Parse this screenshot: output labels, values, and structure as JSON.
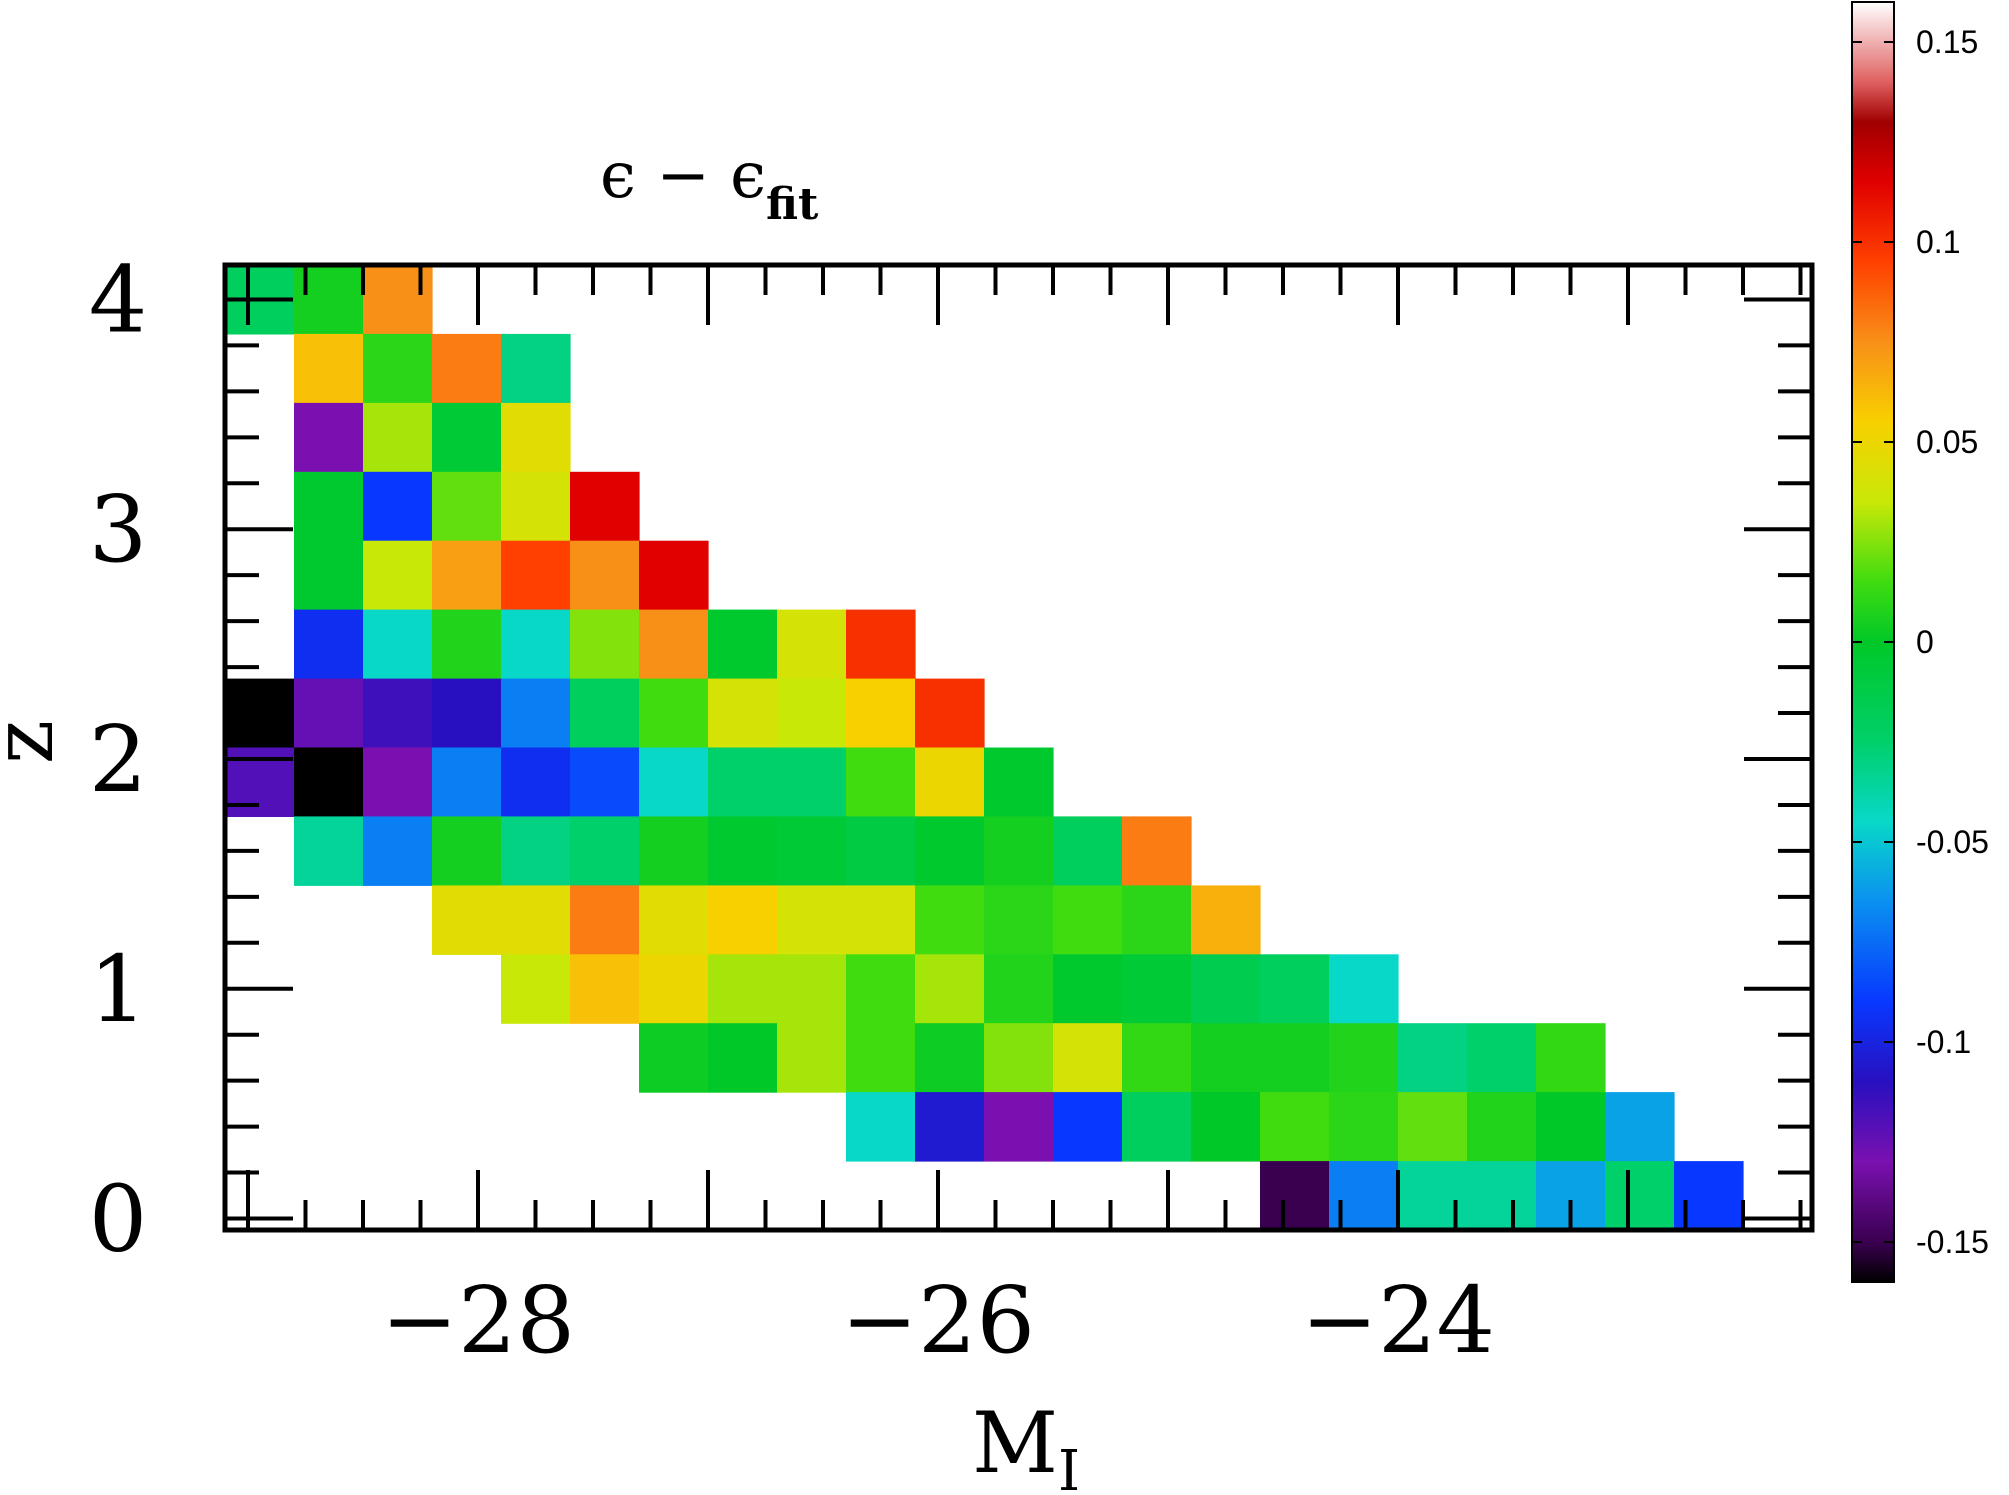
{
  "chart_data": {
    "type": "heatmap",
    "title": "ϵ − ϵ",
    "title_subscript": "fit",
    "xlabel": "M",
    "xlabel_subscript": "I",
    "ylabel": "z",
    "xlim": [
      -29.1,
      -22.2
    ],
    "ylim": [
      -0.05,
      4.15
    ],
    "x_ticks": [
      -28,
      -26,
      -24
    ],
    "x_tick_labels": [
      "−28",
      "−26",
      "−24"
    ],
    "y_ticks": [
      0,
      1,
      2,
      3,
      4
    ],
    "y_tick_labels": [
      "0",
      "1",
      "2",
      "3",
      "4"
    ],
    "bin_width_x": 0.3,
    "bin_width_y": 0.3,
    "colorbar": {
      "range": [
        -0.16,
        0.16
      ],
      "ticks": [
        0.15,
        0.1,
        0.05,
        0,
        -0.05,
        -0.1,
        -0.15
      ],
      "tick_labels": [
        "0.15",
        "0.1",
        "0.05",
        "0",
        "-0.05",
        "-0.1",
        "-0.15"
      ],
      "colormap": [
        [
          -0.16,
          "#000000"
        ],
        [
          -0.15,
          "#3a0050"
        ],
        [
          -0.13,
          "#7a10b0"
        ],
        [
          -0.11,
          "#2810c0"
        ],
        [
          -0.09,
          "#0838ff"
        ],
        [
          -0.065,
          "#0a90f0"
        ],
        [
          -0.045,
          "#08d8c8"
        ],
        [
          -0.025,
          "#00d06a"
        ],
        [
          0.0,
          "#00c828"
        ],
        [
          0.015,
          "#40dc10"
        ],
        [
          0.035,
          "#c8e808"
        ],
        [
          0.055,
          "#f8d000"
        ],
        [
          0.075,
          "#f89018"
        ],
        [
          0.095,
          "#ff4000"
        ],
        [
          0.115,
          "#e00000"
        ],
        [
          0.13,
          "#a00000"
        ],
        [
          0.14,
          "#e06060"
        ],
        [
          0.16,
          "#ffffff"
        ]
      ]
    },
    "cells": [
      {
        "x": -28.95,
        "y": 4.0,
        "value": -0.02
      },
      {
        "x": -28.65,
        "y": 4.0,
        "value": 0.005
      },
      {
        "x": -28.35,
        "y": 4.0,
        "value": 0.075
      },
      {
        "x": -28.65,
        "y": 3.7,
        "value": 0.06
      },
      {
        "x": -28.35,
        "y": 3.7,
        "value": 0.01
      },
      {
        "x": -28.05,
        "y": 3.7,
        "value": 0.08
      },
      {
        "x": -27.75,
        "y": 3.7,
        "value": -0.03
      },
      {
        "x": -28.65,
        "y": 3.4,
        "value": -0.13
      },
      {
        "x": -28.35,
        "y": 3.4,
        "value": 0.03
      },
      {
        "x": -28.05,
        "y": 3.4,
        "value": -0.005
      },
      {
        "x": -27.75,
        "y": 3.4,
        "value": 0.045
      },
      {
        "x": -28.65,
        "y": 3.1,
        "value": -0.003
      },
      {
        "x": -28.35,
        "y": 3.1,
        "value": -0.09
      },
      {
        "x": -28.05,
        "y": 3.1,
        "value": 0.02
      },
      {
        "x": -27.75,
        "y": 3.1,
        "value": 0.04
      },
      {
        "x": -27.45,
        "y": 3.1,
        "value": 0.115
      },
      {
        "x": -28.65,
        "y": 2.8,
        "value": -0.003
      },
      {
        "x": -28.35,
        "y": 2.8,
        "value": 0.035
      },
      {
        "x": -28.05,
        "y": 2.8,
        "value": 0.07
      },
      {
        "x": -27.75,
        "y": 2.8,
        "value": 0.095
      },
      {
        "x": -27.45,
        "y": 2.8,
        "value": 0.075
      },
      {
        "x": -27.15,
        "y": 2.8,
        "value": 0.115
      },
      {
        "x": -28.65,
        "y": 2.5,
        "value": -0.095
      },
      {
        "x": -28.35,
        "y": 2.5,
        "value": -0.045
      },
      {
        "x": -28.05,
        "y": 2.5,
        "value": 0.008
      },
      {
        "x": -27.75,
        "y": 2.5,
        "value": -0.045
      },
      {
        "x": -27.45,
        "y": 2.5,
        "value": 0.025
      },
      {
        "x": -27.15,
        "y": 2.5,
        "value": 0.075
      },
      {
        "x": -26.85,
        "y": 2.5,
        "value": -0.002
      },
      {
        "x": -26.55,
        "y": 2.5,
        "value": 0.04
      },
      {
        "x": -26.25,
        "y": 2.5,
        "value": 0.1
      },
      {
        "x": -28.95,
        "y": 2.2,
        "value": -0.16
      },
      {
        "x": -28.65,
        "y": 2.2,
        "value": -0.125
      },
      {
        "x": -28.35,
        "y": 2.2,
        "value": -0.115
      },
      {
        "x": -28.05,
        "y": 2.2,
        "value": -0.11
      },
      {
        "x": -27.75,
        "y": 2.2,
        "value": -0.07
      },
      {
        "x": -27.45,
        "y": 2.2,
        "value": -0.02
      },
      {
        "x": -27.15,
        "y": 2.2,
        "value": 0.015
      },
      {
        "x": -26.85,
        "y": 2.2,
        "value": 0.04
      },
      {
        "x": -26.55,
        "y": 2.2,
        "value": 0.035
      },
      {
        "x": -26.25,
        "y": 2.2,
        "value": 0.055
      },
      {
        "x": -25.95,
        "y": 2.2,
        "value": 0.1
      },
      {
        "x": -28.95,
        "y": 1.9,
        "value": -0.12
      },
      {
        "x": -28.65,
        "y": 1.9,
        "value": -0.16
      },
      {
        "x": -28.35,
        "y": 1.9,
        "value": -0.13
      },
      {
        "x": -28.05,
        "y": 1.9,
        "value": -0.07
      },
      {
        "x": -27.75,
        "y": 1.9,
        "value": -0.095
      },
      {
        "x": -27.45,
        "y": 1.9,
        "value": -0.085
      },
      {
        "x": -27.15,
        "y": 1.9,
        "value": -0.045
      },
      {
        "x": -26.85,
        "y": 1.9,
        "value": -0.025
      },
      {
        "x": -26.55,
        "y": 1.9,
        "value": -0.025
      },
      {
        "x": -26.25,
        "y": 1.9,
        "value": 0.015
      },
      {
        "x": -25.95,
        "y": 1.9,
        "value": 0.05
      },
      {
        "x": -25.65,
        "y": 1.9,
        "value": -0.002
      },
      {
        "x": -28.65,
        "y": 1.6,
        "value": -0.035
      },
      {
        "x": -28.35,
        "y": 1.6,
        "value": -0.07
      },
      {
        "x": -28.05,
        "y": 1.6,
        "value": 0.005
      },
      {
        "x": -27.75,
        "y": 1.6,
        "value": -0.03
      },
      {
        "x": -27.45,
        "y": 1.6,
        "value": -0.025
      },
      {
        "x": -27.15,
        "y": 1.6,
        "value": 0.005
      },
      {
        "x": -26.85,
        "y": 1.6,
        "value": -0.003
      },
      {
        "x": -26.55,
        "y": 1.6,
        "value": -0.005
      },
      {
        "x": -26.25,
        "y": 1.6,
        "value": -0.01
      },
      {
        "x": -25.95,
        "y": 1.6,
        "value": -0.002
      },
      {
        "x": -25.65,
        "y": 1.6,
        "value": 0.005
      },
      {
        "x": -25.35,
        "y": 1.6,
        "value": -0.02
      },
      {
        "x": -25.05,
        "y": 1.6,
        "value": 0.08
      },
      {
        "x": -28.05,
        "y": 1.3,
        "value": 0.045
      },
      {
        "x": -27.75,
        "y": 1.3,
        "value": 0.045
      },
      {
        "x": -27.45,
        "y": 1.3,
        "value": 0.08
      },
      {
        "x": -27.15,
        "y": 1.3,
        "value": 0.045
      },
      {
        "x": -26.85,
        "y": 1.3,
        "value": 0.055
      },
      {
        "x": -26.55,
        "y": 1.3,
        "value": 0.04
      },
      {
        "x": -26.25,
        "y": 1.3,
        "value": 0.04
      },
      {
        "x": -25.95,
        "y": 1.3,
        "value": 0.015
      },
      {
        "x": -25.65,
        "y": 1.3,
        "value": 0.01
      },
      {
        "x": -25.35,
        "y": 1.3,
        "value": 0.015
      },
      {
        "x": -25.05,
        "y": 1.3,
        "value": 0.01
      },
      {
        "x": -24.75,
        "y": 1.3,
        "value": 0.065
      },
      {
        "x": -27.75,
        "y": 1.0,
        "value": 0.035
      },
      {
        "x": -27.45,
        "y": 1.0,
        "value": 0.06
      },
      {
        "x": -27.15,
        "y": 1.0,
        "value": 0.05
      },
      {
        "x": -26.85,
        "y": 1.0,
        "value": 0.03
      },
      {
        "x": -26.55,
        "y": 1.0,
        "value": 0.03
      },
      {
        "x": -26.25,
        "y": 1.0,
        "value": 0.015
      },
      {
        "x": -25.95,
        "y": 1.0,
        "value": 0.03
      },
      {
        "x": -25.65,
        "y": 1.0,
        "value": 0.008
      },
      {
        "x": -25.35,
        "y": 1.0,
        "value": -0.002
      },
      {
        "x": -25.05,
        "y": 1.0,
        "value": -0.005
      },
      {
        "x": -24.75,
        "y": 1.0,
        "value": -0.015
      },
      {
        "x": -24.45,
        "y": 1.0,
        "value": -0.02
      },
      {
        "x": -24.15,
        "y": 1.0,
        "value": -0.045
      },
      {
        "x": -27.15,
        "y": 0.7,
        "value": 0.003
      },
      {
        "x": -26.85,
        "y": 0.7,
        "value": 0.0
      },
      {
        "x": -26.55,
        "y": 0.7,
        "value": 0.03
      },
      {
        "x": -26.25,
        "y": 0.7,
        "value": 0.015
      },
      {
        "x": -25.95,
        "y": 0.7,
        "value": 0.003
      },
      {
        "x": -25.65,
        "y": 0.7,
        "value": 0.025
      },
      {
        "x": -25.35,
        "y": 0.7,
        "value": 0.04
      },
      {
        "x": -25.05,
        "y": 0.7,
        "value": 0.012
      },
      {
        "x": -24.75,
        "y": 0.7,
        "value": 0.005
      },
      {
        "x": -24.45,
        "y": 0.7,
        "value": 0.005
      },
      {
        "x": -24.15,
        "y": 0.7,
        "value": 0.008
      },
      {
        "x": -23.85,
        "y": 0.7,
        "value": -0.03
      },
      {
        "x": -23.55,
        "y": 0.7,
        "value": -0.025
      },
      {
        "x": -23.25,
        "y": 0.7,
        "value": 0.012
      },
      {
        "x": -26.25,
        "y": 0.4,
        "value": -0.045
      },
      {
        "x": -25.95,
        "y": 0.4,
        "value": -0.105
      },
      {
        "x": -25.65,
        "y": 0.4,
        "value": -0.13
      },
      {
        "x": -25.35,
        "y": 0.4,
        "value": -0.09
      },
      {
        "x": -25.05,
        "y": 0.4,
        "value": -0.02
      },
      {
        "x": -24.75,
        "y": 0.4,
        "value": 0.0
      },
      {
        "x": -24.45,
        "y": 0.4,
        "value": 0.015
      },
      {
        "x": -24.15,
        "y": 0.4,
        "value": 0.01
      },
      {
        "x": -23.85,
        "y": 0.4,
        "value": 0.02
      },
      {
        "x": -23.55,
        "y": 0.4,
        "value": 0.008
      },
      {
        "x": -23.25,
        "y": 0.4,
        "value": 0.0
      },
      {
        "x": -22.95,
        "y": 0.4,
        "value": -0.06
      },
      {
        "x": -24.45,
        "y": 0.1,
        "value": -0.15
      },
      {
        "x": -24.15,
        "y": 0.1,
        "value": -0.07
      },
      {
        "x": -23.85,
        "y": 0.1,
        "value": -0.035
      },
      {
        "x": -23.55,
        "y": 0.1,
        "value": -0.035
      },
      {
        "x": -23.25,
        "y": 0.1,
        "value": -0.06
      },
      {
        "x": -22.95,
        "y": 0.1,
        "value": -0.025
      },
      {
        "x": -22.65,
        "y": 0.1,
        "value": -0.09
      }
    ]
  }
}
